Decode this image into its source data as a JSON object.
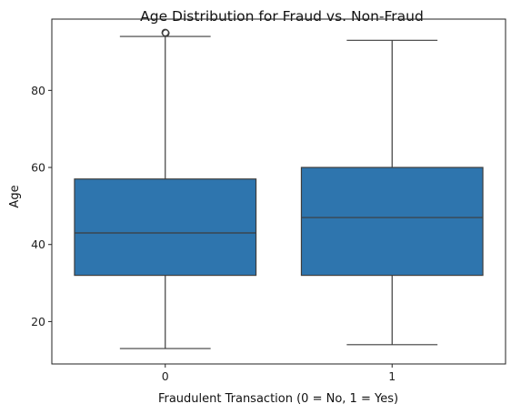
{
  "chart_data": {
    "type": "box",
    "title": "Age Distribution for Fraud vs. Non-Fraud",
    "xlabel": "Fraudulent Transaction (0 = No, 1 = Yes)",
    "ylabel": "Age",
    "categories": [
      "0",
      "1"
    ],
    "boxes": [
      {
        "category": "0",
        "whisker_low": 13,
        "q1": 32,
        "median": 43,
        "q3": 57,
        "whisker_high": 94,
        "outliers": [
          95,
          95
        ]
      },
      {
        "category": "1",
        "whisker_low": 14,
        "q1": 32,
        "median": 47,
        "q3": 60,
        "whisker_high": 93,
        "outliers": []
      }
    ],
    "ylim": [
      9,
      98.5
    ],
    "yticks": [
      20,
      40,
      60,
      80
    ],
    "grid": false,
    "colors": {
      "box_fill": "#2e75ae",
      "line": "#3d3d3d"
    }
  }
}
